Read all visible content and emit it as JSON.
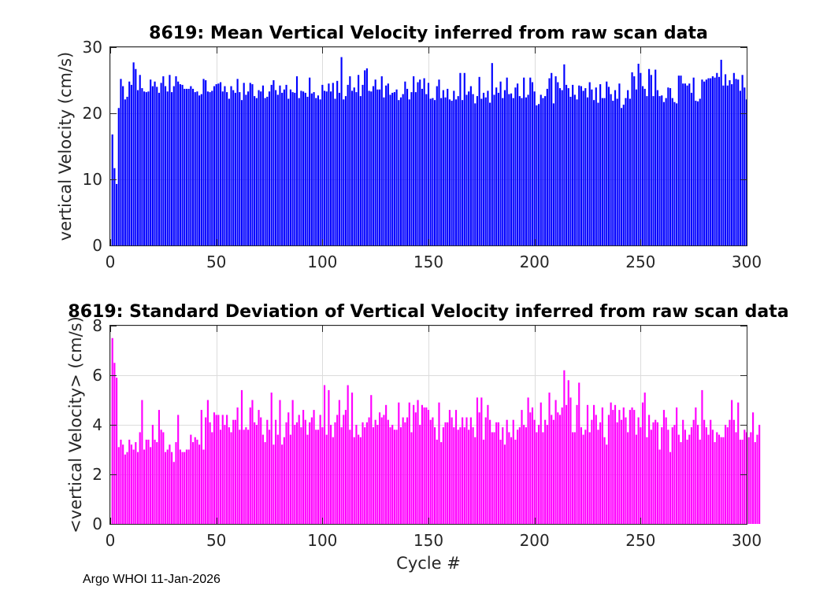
{
  "footer": "Argo WHOI 11-Jan-2026",
  "chart_data": [
    {
      "type": "bar",
      "title": "8619: Mean Vertical Velocity inferred from raw scan data",
      "xlabel": "",
      "ylabel": "vertical Velocity (cm/s)",
      "xlim": [
        0,
        300
      ],
      "ylim": [
        0,
        30
      ],
      "xticks": [
        0,
        50,
        100,
        150,
        200,
        250,
        300
      ],
      "yticks": [
        0,
        10,
        20,
        30
      ],
      "grid": true,
      "color": "#0000ff",
      "x_start": 1,
      "values": [
        16.8,
        11.7,
        9.3,
        20.8,
        25.2,
        24.1,
        22.1,
        22.5,
        24.8,
        24.3,
        27.7,
        26.7,
        23.5,
        25.8,
        23.8,
        23.3,
        23.2,
        23.3,
        25.1,
        24.1,
        24.8,
        24.0,
        23.1,
        24.6,
        25.6,
        24.1,
        23.3,
        25.8,
        23.2,
        24.1,
        25.6,
        24.8,
        24.4,
        24.3,
        23.7,
        23.7,
        23.7,
        24.1,
        23.7,
        23.2,
        23.3,
        22.7,
        22.9,
        25.2,
        25.0,
        23.3,
        23.2,
        23.4,
        24.1,
        24.4,
        24.5,
        24.7,
        23.3,
        24.1,
        23.2,
        22.2,
        24.1,
        23.5,
        23.1,
        25.2,
        23.2,
        22.0,
        24.6,
        22.8,
        23.3,
        24.6,
        24.4,
        22.6,
        22.3,
        23.5,
        23.3,
        24.2,
        22.3,
        22.5,
        23.3,
        24.3,
        25.0,
        23.5,
        22.8,
        24.2,
        23.1,
        23.6,
        24.3,
        22.2,
        23.6,
        23.2,
        23.1,
        25.6,
        22.3,
        23.4,
        23.3,
        23.1,
        22.5,
        25.4,
        23.0,
        23.2,
        22.3,
        22.7,
        22.1,
        24.3,
        23.4,
        23.3,
        24.5,
        23.3,
        24.6,
        22.2,
        24.9,
        23.1,
        28.5,
        22.1,
        22.6,
        24.3,
        25.6,
        23.4,
        23.9,
        23.2,
        25.8,
        22.6,
        24.3,
        26.5,
        26.8,
        23.4,
        23.3,
        24.1,
        25.1,
        23.6,
        23.6,
        25.6,
        22.4,
        24.2,
        24.5,
        22.8,
        23.1,
        23.2,
        23.6,
        22.0,
        22.4,
        22.9,
        24.8,
        23.7,
        22.1,
        23.2,
        25.6,
        23.2,
        24.7,
        25.1,
        23.7,
        25.3,
        22.9,
        24.6,
        22.2,
        22.3,
        22.0,
        24.1,
        25.1,
        22.3,
        23.5,
        22.4,
        23.7,
        22.1,
        21.9,
        23.4,
        22.1,
        22.6,
        26.1,
        22.0,
        26.1,
        22.8,
        23.3,
        24.1,
        22.9,
        21.5,
        22.6,
        25.5,
        22.2,
        23.1,
        22.4,
        23.4,
        21.6,
        27.6,
        22.8,
        23.9,
        23.1,
        24.8,
        22.3,
        23.5,
        25.4,
        22.9,
        23.0,
        22.3,
        23.9,
        24.5,
        22.6,
        22.3,
        25.4,
        22.4,
        22.8,
        25.4,
        24.7,
        23.3,
        21.2,
        21.4,
        22.8,
        22.3,
        22.6,
        23.7,
        25.3,
        26.1,
        21.5,
        25.6,
        24.7,
        23.8,
        23.5,
        27.4,
        24.3,
        23.8,
        22.5,
        24.3,
        22.8,
        22.1,
        24.2,
        24.1,
        23.4,
        23.8,
        22.4,
        24.7,
        23.6,
        22.0,
        23.9,
        21.6,
        24.4,
        22.3,
        22.3,
        24.8,
        24.0,
        22.9,
        21.9,
        23.5,
        22.2,
        24.5,
        20.8,
        21.3,
        22.3,
        23.5,
        22.2,
        26.2,
        25.6,
        23.6,
        27.5,
        26.1,
        24.1,
        23.7,
        22.6,
        26.7,
        25.8,
        22.6,
        26.6,
        23.5,
        22.6,
        22.7,
        21.7,
        22.3,
        23.9,
        23.8,
        22.3,
        21.7,
        21.5,
        25.7,
        25.7,
        24.5,
        24.5,
        24.2,
        24.5,
        23.1,
        25.4,
        21.9,
        21.8,
        22.2,
        25.1,
        24.8,
        25.1,
        25.3,
        25.3,
        25.6,
        25.4,
        26.1,
        25.5,
        28.1,
        24.2,
        25.9,
        24.2,
        25.0,
        24.4,
        26.1,
        25.2,
        25.1,
        23.4,
        25.8,
        23.9,
        22.1
      ]
    },
    {
      "type": "bar",
      "title": "8619: Standard Deviation of Vertical Velocity inferred from raw scan data",
      "xlabel": "Cycle #",
      "ylabel": "<vertical Velocity> (cm/s)",
      "xlim": [
        0,
        300
      ],
      "ylim": [
        0,
        8
      ],
      "xticks": [
        0,
        50,
        100,
        150,
        200,
        250,
        300
      ],
      "yticks": [
        0,
        2,
        4,
        6,
        8
      ],
      "grid": true,
      "color": "#ff00ff",
      "x_start": 1,
      "values": [
        7.5,
        6.5,
        5.9,
        3.1,
        3.4,
        3.2,
        2.8,
        2.9,
        3.4,
        3.2,
        3.0,
        3.3,
        2.9,
        3.7,
        5.0,
        3.0,
        3.4,
        3.4,
        3.1,
        4.0,
        3.4,
        3.3,
        4.6,
        3.8,
        3.7,
        2.9,
        3.0,
        3.2,
        2.9,
        2.5,
        3.3,
        4.4,
        3.0,
        2.9,
        2.9,
        3.0,
        3.0,
        3.6,
        3.3,
        3.5,
        3.4,
        3.2,
        4.6,
        3.0,
        4.3,
        5.0,
        4.1,
        3.7,
        4.5,
        4.4,
        4.4,
        3.8,
        4.4,
        4.0,
        4.4,
        3.9,
        3.7,
        4.2,
        4.2,
        4.7,
        3.8,
        5.4,
        3.8,
        3.9,
        3.8,
        4.7,
        5.0,
        4.1,
        4.0,
        4.6,
        4.3,
        3.6,
        3.3,
        4.2,
        3.8,
        5.3,
        3.2,
        4.2,
        3.6,
        5.0,
        3.2,
        3.5,
        4.1,
        4.5,
        3.6,
        5.0,
        4.0,
        4.1,
        4.4,
        3.9,
        4.6,
        4.2,
        3.6,
        4.1,
        4.3,
        4.6,
        3.8,
        3.8,
        4.4,
        3.9,
        5.6,
        3.6,
        5.4,
        4.0,
        3.5,
        4.1,
        4.4,
        5.0,
        3.9,
        4.4,
        4.6,
        5.6,
        3.8,
        5.3,
        3.5,
        4.0,
        3.6,
        3.5,
        4.1,
        3.9,
        4.1,
        4.3,
        5.2,
        3.9,
        4.2,
        4.0,
        4.5,
        4.3,
        4.4,
        4.8,
        4.2,
        3.9,
        4.0,
        3.8,
        3.8,
        4.9,
        3.9,
        4.3,
        4.1,
        4.3,
        4.9,
        3.7,
        4.8,
        4.5,
        5.0,
        4.0,
        4.8,
        4.7,
        4.7,
        4.6,
        4.2,
        4.3,
        3.9,
        3.4,
        4.9,
        3.3,
        3.9,
        4.1,
        4.1,
        4.6,
        4.3,
        3.9,
        4.6,
        3.8,
        3.9,
        4.3,
        3.9,
        4.3,
        3.8,
        4.3,
        3.9,
        3.5,
        5.1,
        4.5,
        5.1,
        3.4,
        4.3,
        4.8,
        4.2,
        3.7,
        3.7,
        4.1,
        4.1,
        3.4,
        3.9,
        3.2,
        4.2,
        3.7,
        3.5,
        4.2,
        3.4,
        3.8,
        3.9,
        4.6,
        4.0,
        3.9,
        5.1,
        4.5,
        4.7,
        4.2,
        3.7,
        4.0,
        4.9,
        3.7,
        4.2,
        4.0,
        5.3,
        4.4,
        4.2,
        5.0,
        4.5,
        4.4,
        4.7,
        6.2,
        4.8,
        5.8,
        5.1,
        3.7,
        3.7,
        4.8,
        5.7,
        3.9,
        3.6,
        3.8,
        4.8,
        3.7,
        4.2,
        4.8,
        4.4,
        3.8,
        4.1,
        4.7,
        3.5,
        3.2,
        4.4,
        4.9,
        4.6,
        4.8,
        4.1,
        4.6,
        4.2,
        4.7,
        4.3,
        3.7,
        4.6,
        4.7,
        4.6,
        3.6,
        4.3,
        3.9,
        4.9,
        5.3,
        3.5,
        4.4,
        3.8,
        4.1,
        4.2,
        4.1,
        3.0,
        3.9,
        4.6,
        4.3,
        3.8,
        2.9,
        3.9,
        4.0,
        4.7,
        3.6,
        3.3,
        4.2,
        3.8,
        3.4,
        3.6,
        3.9,
        4.2,
        4.7,
        4.0,
        3.4,
        5.4,
        4.2,
        3.9,
        3.6,
        4.2,
        3.8,
        3.3,
        3.7,
        3.6,
        3.5,
        3.5,
        4.0,
        3.9,
        4.2,
        5.0,
        4.2,
        3.7,
        4.9,
        3.4,
        3.4,
        3.8,
        3.7,
        3.5,
        3.7,
        4.5,
        3.3,
        3.6,
        4.0
      ]
    }
  ]
}
